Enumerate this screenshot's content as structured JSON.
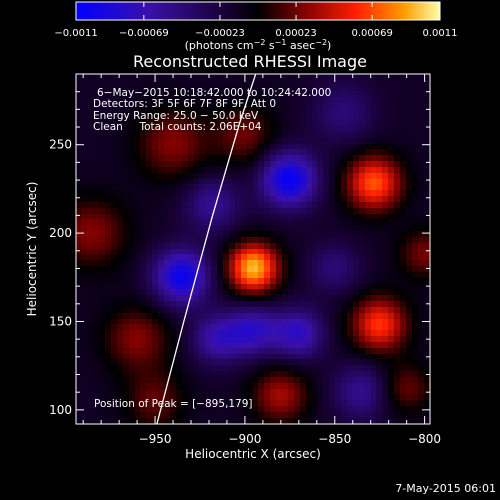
{
  "chart_data": {
    "type": "heatmap",
    "title": "Reconstructed RHESSI Image",
    "xlabel": "Heliocentric X (arcsec)",
    "ylabel": "Heliocentric Y (arcsec)",
    "xlim": [
      -994,
      -797
    ],
    "ylim": [
      92,
      290
    ],
    "x_ticks": [
      -950,
      -900,
      -850,
      -800
    ],
    "y_ticks": [
      100,
      150,
      200,
      250
    ],
    "x_tick_labels": [
      "−950",
      "−900",
      "−850",
      "−800"
    ],
    "y_tick_labels": [
      "100",
      "150",
      "200",
      "250"
    ],
    "colorbar": {
      "range": [
        -0.0011,
        0.0011
      ],
      "tick_values": [
        -0.0011,
        -0.00069,
        -0.00023,
        0.00023,
        0.00069,
        0.0011
      ],
      "tick_labels": [
        "−0.0011",
        "−0.00069",
        "−0.00023",
        "0.00023",
        "0.00069",
        "0.0011"
      ],
      "colors": [
        "#0000ff",
        "#3a10a8",
        "#160030",
        "#000000",
        "#7a0000",
        "#ff2000",
        "#ff9a00",
        "#ffffa8"
      ]
    },
    "units_label": {
      "prefix": "(photons cm",
      "exp1": "−2",
      "mid1": " s",
      "exp2": "−1",
      "mid2": " asec",
      "exp3": "−2",
      "suffix": ")"
    },
    "annotations": [
      "6−May−2015 10:18:42.000 to 10:24:42.000",
      "Detectors: 3F 5F 6F 7F 8F 9F, Att 0",
      "Energy Range: 25.0 − 50.0 keV",
      "Clean     Total counts: 2.06E+04"
    ],
    "peak_label": "Position of Peak = [−895,179]",
    "peak": [
      -895,
      179
    ],
    "components": [
      {
        "x": -895,
        "y": 180,
        "amp": 1.0,
        "sigma": 10
      },
      {
        "x": -828,
        "y": 228,
        "amp": 0.78,
        "sigma": 11
      },
      {
        "x": -825,
        "y": 148,
        "amp": 0.7,
        "sigma": 11
      },
      {
        "x": -880,
        "y": 108,
        "amp": 0.45,
        "sigma": 11
      },
      {
        "x": -960,
        "y": 140,
        "amp": 0.38,
        "sigma": 13
      },
      {
        "x": -940,
        "y": 250,
        "amp": 0.38,
        "sigma": 14
      },
      {
        "x": -900,
        "y": 255,
        "amp": 0.33,
        "sigma": 12
      },
      {
        "x": -985,
        "y": 200,
        "amp": 0.38,
        "sigma": 14
      },
      {
        "x": -950,
        "y": 105,
        "amp": 0.3,
        "sigma": 12
      },
      {
        "x": -810,
        "y": 112,
        "amp": 0.32,
        "sigma": 10
      },
      {
        "x": -800,
        "y": 188,
        "amp": 0.35,
        "sigma": 10
      },
      {
        "x": -870,
        "y": 143,
        "amp": -0.58,
        "sigma": 10
      },
      {
        "x": -895,
        "y": 145,
        "amp": -0.55,
        "sigma": 10
      },
      {
        "x": -875,
        "y": 230,
        "amp": -0.85,
        "sigma": 11
      },
      {
        "x": -935,
        "y": 175,
        "amp": -0.8,
        "sigma": 11
      },
      {
        "x": -915,
        "y": 140,
        "amp": -0.5,
        "sigma": 10
      },
      {
        "x": -850,
        "y": 180,
        "amp": -0.3,
        "sigma": 10
      },
      {
        "x": -845,
        "y": 268,
        "amp": -0.3,
        "sigma": 12
      },
      {
        "x": -835,
        "y": 110,
        "amp": -0.4,
        "sigma": 11
      },
      {
        "x": -918,
        "y": 216,
        "amp": -0.4,
        "sigma": 11
      }
    ],
    "limb_line": [
      [
        -949,
        92
      ],
      [
        -934,
        150
      ],
      [
        -918,
        210
      ],
      [
        -903,
        262
      ],
      [
        -894,
        290
      ]
    ]
  },
  "footer": {
    "timestamp": "7-May-2015 06:01"
  }
}
